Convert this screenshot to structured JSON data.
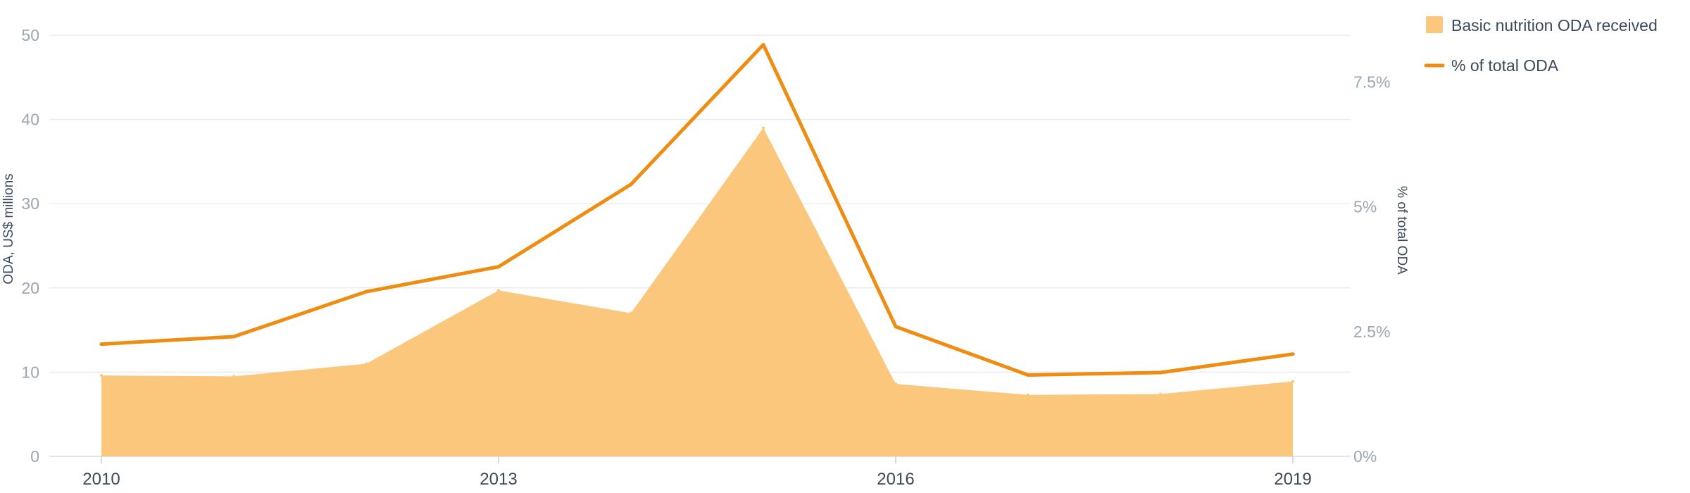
{
  "chart_data": {
    "type": "area",
    "x": [
      2010,
      2011,
      2012,
      2013,
      2014,
      2015,
      2016,
      2017,
      2018,
      2019
    ],
    "x_tick_labels": [
      "2010",
      "2013",
      "2016",
      "2019"
    ],
    "x_tick_values": [
      2010,
      2013,
      2016,
      2019
    ],
    "series": [
      {
        "name": "Basic nutrition ODA received",
        "type": "area",
        "axis": "left",
        "color": "#fac77c",
        "values": [
          9.6,
          9.5,
          11.0,
          19.7,
          17.0,
          39.0,
          8.6,
          7.3,
          7.4,
          8.9
        ]
      },
      {
        "name": "% of total ODA",
        "type": "line",
        "axis": "right",
        "color": "#ef8c12",
        "values": [
          2.25,
          2.4,
          3.3,
          3.8,
          5.45,
          8.25,
          2.6,
          1.63,
          1.68,
          2.05
        ]
      }
    ],
    "left_axis": {
      "label": "ODA, US$ millions",
      "ylim": [
        0,
        50
      ],
      "tick_values": [
        0,
        10,
        20,
        30,
        40,
        50
      ],
      "tick_labels": [
        "0",
        "10",
        "20",
        "30",
        "40",
        "50"
      ]
    },
    "right_axis": {
      "label": "% of total ODA",
      "ylim": [
        0,
        8.44
      ],
      "tick_values": [
        0,
        2.5,
        5,
        7.5
      ],
      "tick_labels": [
        "0%",
        "2.5%",
        "5%",
        "7.5%"
      ]
    },
    "title": "",
    "grid": true,
    "legend_position": "top-right"
  }
}
